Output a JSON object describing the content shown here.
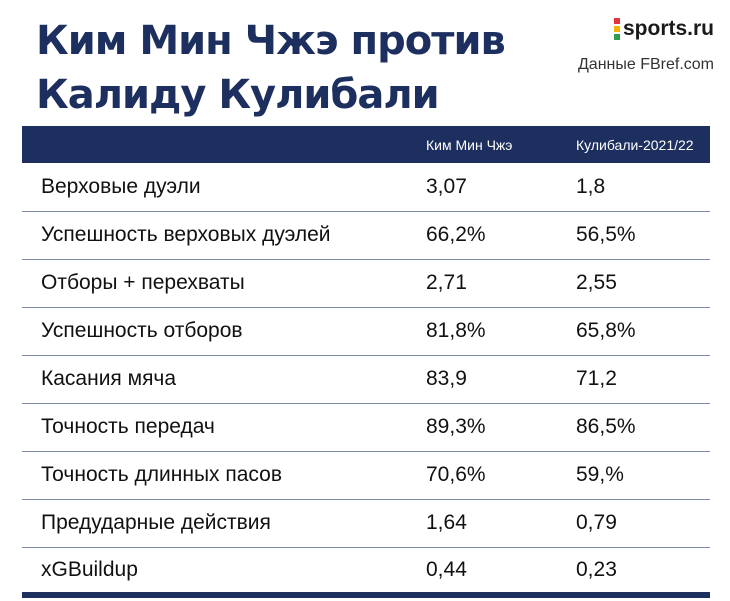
{
  "title": {
    "line1": "Ким Мин Чжэ против",
    "line2": "Калиду Кулибали"
  },
  "brand": {
    "logo_text": "sports.ru",
    "logo_colors": [
      "#e8333c",
      "#f4b400",
      "#2d9e4a"
    ],
    "source": "Данные FBref.com"
  },
  "accent_color": "#1d2f5e",
  "table": {
    "headers": [
      "",
      "Ким Мин Чжэ",
      "Кулибали-2021/22"
    ],
    "rows": [
      {
        "label": "Верховые дуэли",
        "kim": "3,07",
        "koulibaly": "1,8"
      },
      {
        "label": "Успешность верховых дуэлей",
        "kim": "66,2%",
        "koulibaly": "56,5%"
      },
      {
        "label": "Отборы + перехваты",
        "kim": "2,71",
        "koulibaly": "2,55"
      },
      {
        "label": "Успешность отборов",
        "kim": "81,8%",
        "koulibaly": "65,8%"
      },
      {
        "label": "Касания мяча",
        "kim": "83,9",
        "koulibaly": "71,2"
      },
      {
        "label": "Точность передач",
        "kim": "89,3%",
        "koulibaly": "86,5%"
      },
      {
        "label": "Точность длинных пасов",
        "kim": "70,6%",
        "koulibaly": "59,%"
      },
      {
        "label": "Предударные действия",
        "kim": "1,64",
        "koulibaly": "0,79"
      },
      {
        "label": "xGBuildup",
        "kim": "0,44",
        "koulibaly": "0,23"
      }
    ]
  }
}
